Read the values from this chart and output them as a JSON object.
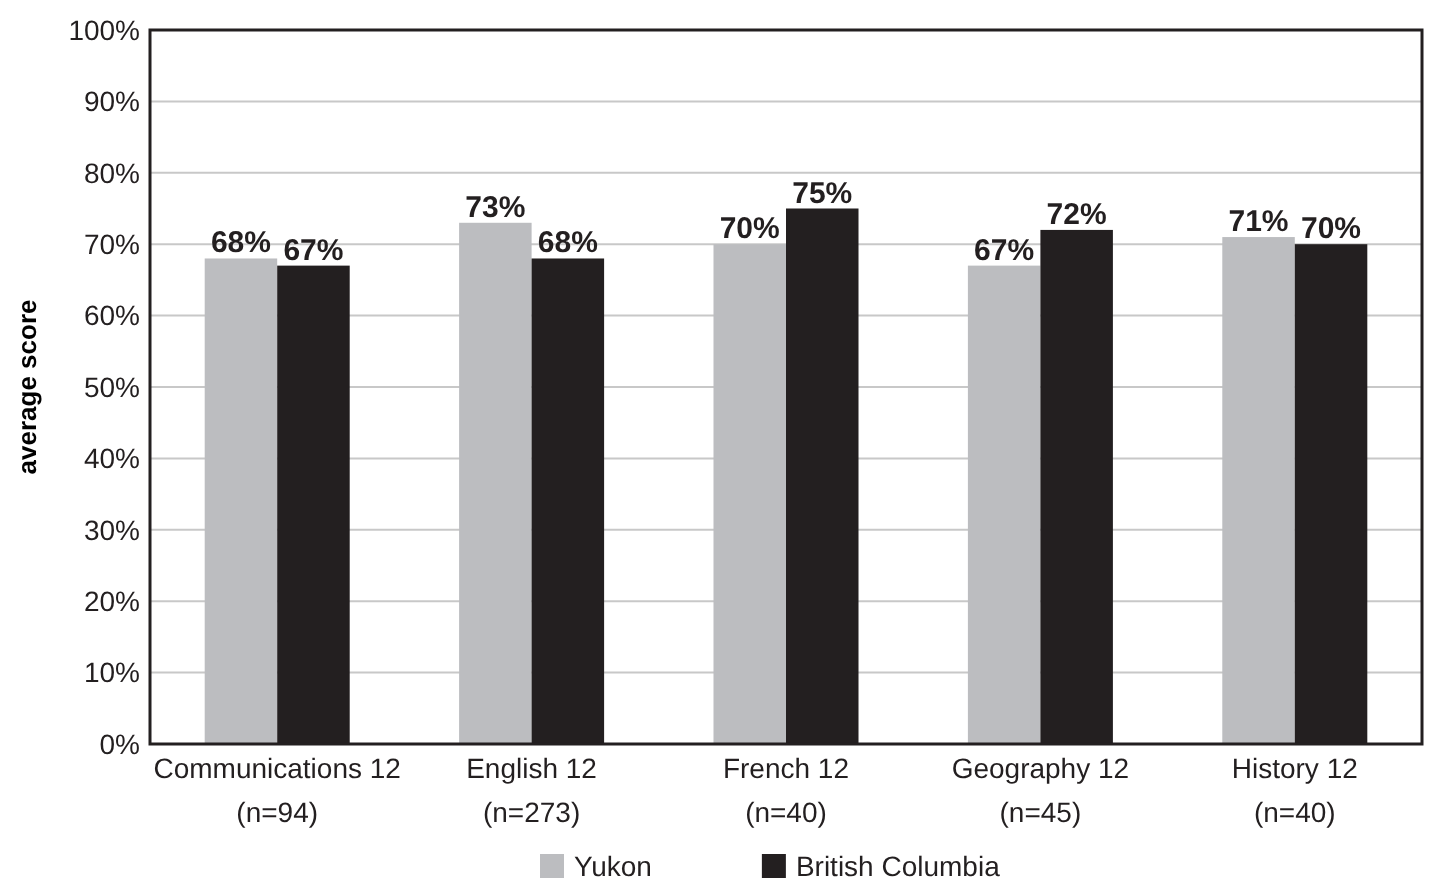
{
  "chart_data": {
    "type": "bar",
    "ylabel": "average score",
    "categories": [
      "Communications 12\n(n=94)",
      "English 12\n(n=273)",
      "French 12\n(n=40)",
      "Geography 12\n(n=45)",
      "History 12\n(n=40)"
    ],
    "series": [
      {
        "name": "Yukon",
        "color": "#bcbdc0",
        "values": [
          68,
          73,
          70,
          67,
          71
        ],
        "value_labels": [
          "68%",
          "73%",
          "70%",
          "67%",
          "71%"
        ]
      },
      {
        "name": "British Columbia",
        "color": "#231f20",
        "values": [
          67,
          68,
          75,
          72,
          70
        ],
        "value_labels": [
          "67%",
          "68%",
          "75%",
          "72%",
          "70%"
        ]
      }
    ],
    "ylim": [
      0,
      100
    ],
    "yticks": [
      {
        "value": 0,
        "label": "0%"
      },
      {
        "value": 10,
        "label": "10%"
      },
      {
        "value": 20,
        "label": "20%"
      },
      {
        "value": 30,
        "label": "30%"
      },
      {
        "value": 40,
        "label": "40%"
      },
      {
        "value": 50,
        "label": "50%"
      },
      {
        "value": 60,
        "label": "60%"
      },
      {
        "value": 70,
        "label": "70%"
      },
      {
        "value": 80,
        "label": "80%"
      },
      {
        "value": 90,
        "label": "90%"
      },
      {
        "value": 100,
        "label": "100%"
      }
    ],
    "grid": "y",
    "legend": "bottom"
  }
}
